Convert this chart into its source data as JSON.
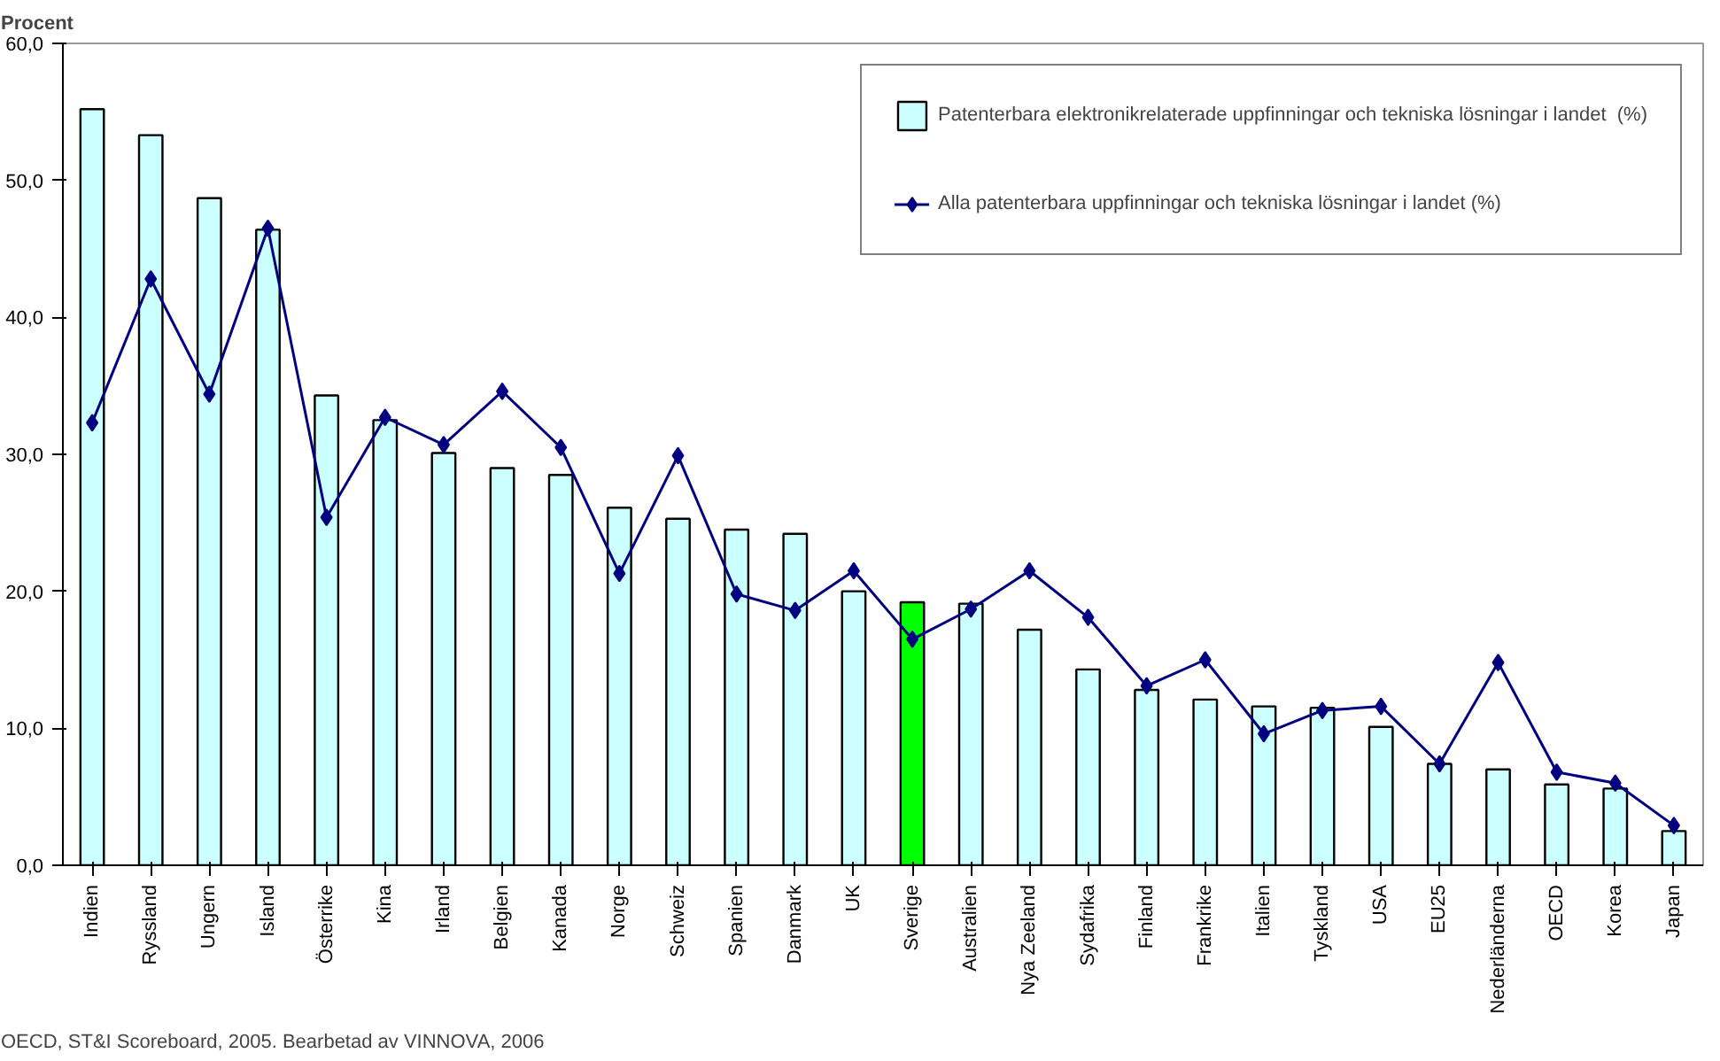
{
  "chart_data": {
    "type": "bar",
    "ylabel": "Procent",
    "categories": [
      "Indien",
      "Ryssland",
      "Ungern",
      "Island",
      "Österrike",
      "Kina",
      "Irland",
      "Belgien",
      "Kanada",
      "Norge",
      "Schweiz",
      "Spanien",
      "Danmark",
      "UK",
      "Sverige",
      "Australien",
      "Nya Zeeland",
      "Sydafrika",
      "Finland",
      "Frankrike",
      "Italien",
      "Tyskland",
      "USA",
      "EU25",
      "Nederländerna",
      "OECD",
      "Korea",
      "Japan"
    ],
    "series": [
      {
        "name": "Patenterbara elektronikrelaterade uppfinningar och tekniska lösningar i landet  (%)",
        "colors": [
          "#ccffff",
          "#ccffff",
          "#ccffff",
          "#ccffff",
          "#ccffff",
          "#ccffff",
          "#ccffff",
          "#ccffff",
          "#ccffff",
          "#ccffff",
          "#ccffff",
          "#ccffff",
          "#ccffff",
          "#ccffff",
          "#00ff00",
          "#ccffff",
          "#ccffff",
          "#ccffff",
          "#ccffff",
          "#ccffff",
          "#ccffff",
          "#ccffff",
          "#ccffff",
          "#ccffff",
          "#ccffff",
          "#ccffff",
          "#ccffff",
          "#ccffff"
        ],
        "values": [
          55.2,
          53.3,
          48.7,
          46.4,
          34.3,
          32.5,
          30.1,
          29.0,
          28.5,
          26.1,
          25.3,
          24.5,
          24.2,
          20.0,
          19.2,
          19.1,
          17.2,
          14.3,
          12.8,
          12.1,
          11.6,
          11.5,
          10.1,
          7.4,
          7.0,
          5.9,
          5.6,
          2.5
        ]
      },
      {
        "name": "Alla patenterbara uppfinningar och tekniska lösningar i landet (%)",
        "type": "line",
        "color": "#000080",
        "marker": "diamond",
        "values": [
          32.3,
          42.8,
          34.4,
          46.5,
          25.4,
          32.7,
          30.7,
          34.6,
          30.5,
          21.3,
          29.9,
          19.8,
          18.6,
          21.5,
          16.5,
          18.7,
          21.5,
          18.1,
          13.1,
          15.0,
          9.6,
          11.3,
          11.6,
          7.4,
          14.8,
          6.8,
          6.0,
          2.9
        ]
      }
    ],
    "ylim": [
      0,
      60
    ],
    "yticks": [
      {
        "value": 0,
        "label": "0,0"
      },
      {
        "value": 10,
        "label": "10,0"
      },
      {
        "value": 20,
        "label": "20,0"
      },
      {
        "value": 30,
        "label": "30,0"
      },
      {
        "value": 40,
        "label": "40,0"
      },
      {
        "value": 50,
        "label": "50,0"
      },
      {
        "value": 60,
        "label": "60,0"
      }
    ],
    "grid": false,
    "legend": "top right",
    "annotations": [
      "OECD, ST&I Scoreboard, 2005. Bearbetad av VINNOVA, 2006"
    ]
  }
}
